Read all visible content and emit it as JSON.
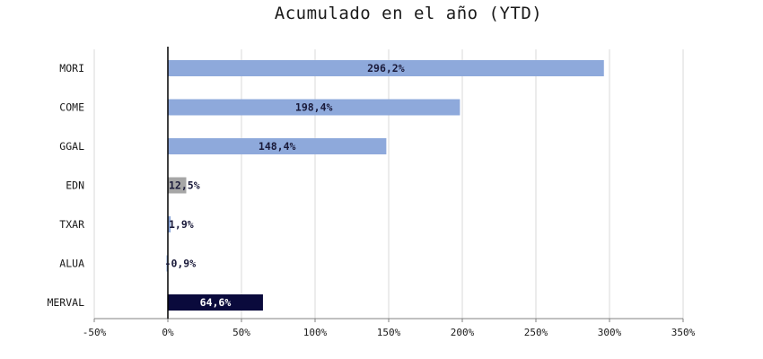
{
  "chart_data": {
    "type": "bar",
    "orientation": "horizontal",
    "title": "Acumulado en el año (YTD)",
    "categories": [
      "MORI",
      "COME",
      "GGAL",
      "EDN",
      "TXAR",
      "ALUA",
      "MERVAL"
    ],
    "values": [
      296.2,
      198.4,
      148.4,
      12.5,
      1.9,
      -0.9,
      64.6
    ],
    "labels": [
      "296,2%",
      "198,4%",
      "148,4%",
      "12,5%",
      "1,9%",
      "-0,9%",
      "64,6%"
    ],
    "bar_colors": [
      "#8ea9db",
      "#8ea9db",
      "#8ea9db",
      "#a6a6a6",
      "#8ea9db",
      "#8ea9db",
      "#0a0a3c"
    ],
    "label_colors": [
      "#1a1a3a",
      "#1a1a3a",
      "#1a1a3a",
      "#1a1a3a",
      "#1a1a3a",
      "#1a1a3a",
      "#ffffff"
    ],
    "xlim": [
      -50,
      350
    ],
    "xticks": [
      -50,
      0,
      50,
      100,
      150,
      200,
      250,
      300,
      350
    ],
    "xtick_labels": [
      "-50%",
      "0%",
      "50%",
      "100%",
      "150%",
      "200%",
      "250%",
      "300%",
      "350%"
    ],
    "grid": true
  }
}
